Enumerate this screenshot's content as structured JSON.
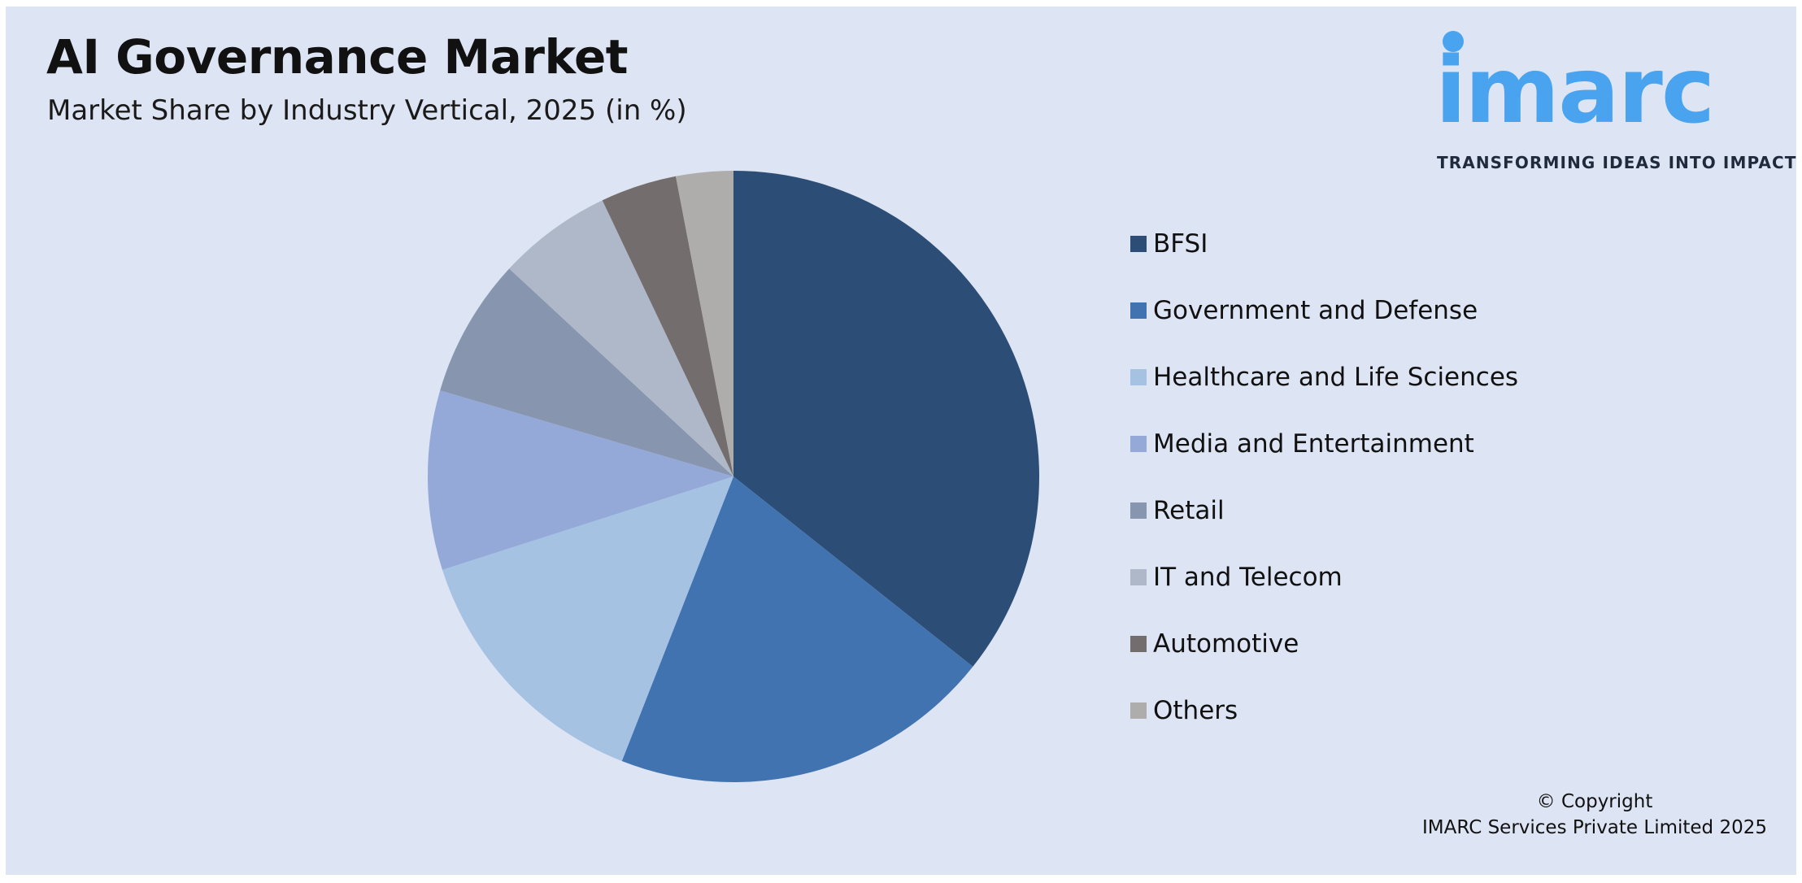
{
  "header": {
    "title": "AI Governance Market",
    "subtitle": "Market Share by Industry Vertical, 2025 (in %)"
  },
  "logo": {
    "word": "imarc",
    "tagline": "TRANSFORMING IDEAS INTO IMPACT",
    "color": "#4aa3ef"
  },
  "copyright": {
    "line1": "© Copyright",
    "line2": "IMARC Services Private Limited 2025"
  },
  "chart_data": {
    "type": "pie",
    "title": "AI Governance Market",
    "subtitle": "Market Share by Industry Vertical, 2025 (in %)",
    "legend_position": "right",
    "start_angle": "12 o'clock, clockwise",
    "categories": [
      "BFSI",
      "Government and Defense",
      "Healthcare and Life Sciences",
      "Media and Entertainment",
      "Retail",
      "IT and Telecom",
      "Automotive",
      "Others"
    ],
    "values": [
      35.4,
      20.1,
      14.0,
      9.4,
      7.3,
      6.0,
      4.0,
      3.0
    ],
    "colors": [
      "#2c4e76",
      "#4173b1",
      "#a5c2e3",
      "#94a9d8",
      "#8796ae",
      "#aeb8c9",
      "#736e6d",
      "#aeadab"
    ]
  }
}
